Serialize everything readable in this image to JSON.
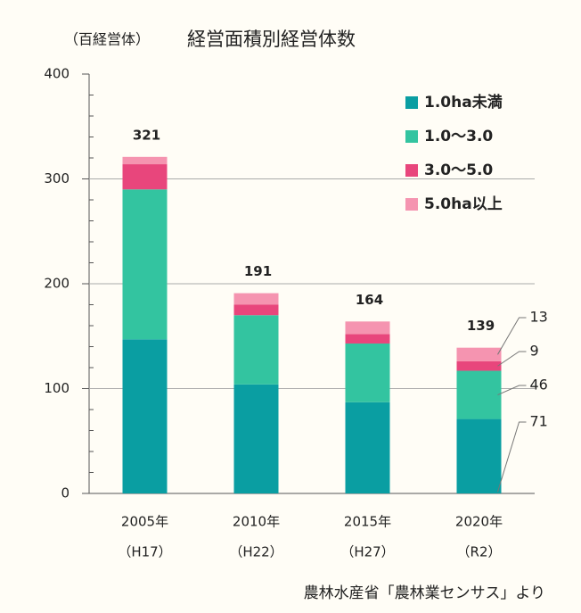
{
  "chart_data": {
    "type": "stacked_bar",
    "title": "経営面積別経営体数",
    "y_label": "（百経営体）",
    "source": "農林水産省「農林業センサス」より",
    "categories": [
      "2005年",
      "2010年",
      "2015年",
      "2020年"
    ],
    "sub_categories": [
      "（H17）",
      "（H22）",
      "（H27）",
      "（R2）"
    ],
    "totals": [
      321,
      191,
      164,
      139
    ],
    "series": [
      {
        "name": "1.0ha未満",
        "color": "#0a9ea2",
        "label_color": "#1a7a80",
        "values": [
          147,
          104,
          87,
          71
        ]
      },
      {
        "name": "1.0～3.0",
        "color": "#33c4a0",
        "label_color": "#1b8f6a",
        "values": [
          143,
          66,
          56,
          46
        ]
      },
      {
        "name": "3.0～5.0",
        "color": "#e8467c",
        "label_color": "#e0467a",
        "values": [
          24,
          10,
          9,
          9
        ]
      },
      {
        "name": "5.0ha以上",
        "color": "#f594b0",
        "label_color": "#e8829e",
        "values": [
          7,
          11,
          12,
          13
        ]
      }
    ],
    "ylim": [
      0,
      400
    ],
    "yticks": [
      0,
      100,
      200,
      300,
      400
    ],
    "grid": true,
    "legend": "upper right"
  }
}
